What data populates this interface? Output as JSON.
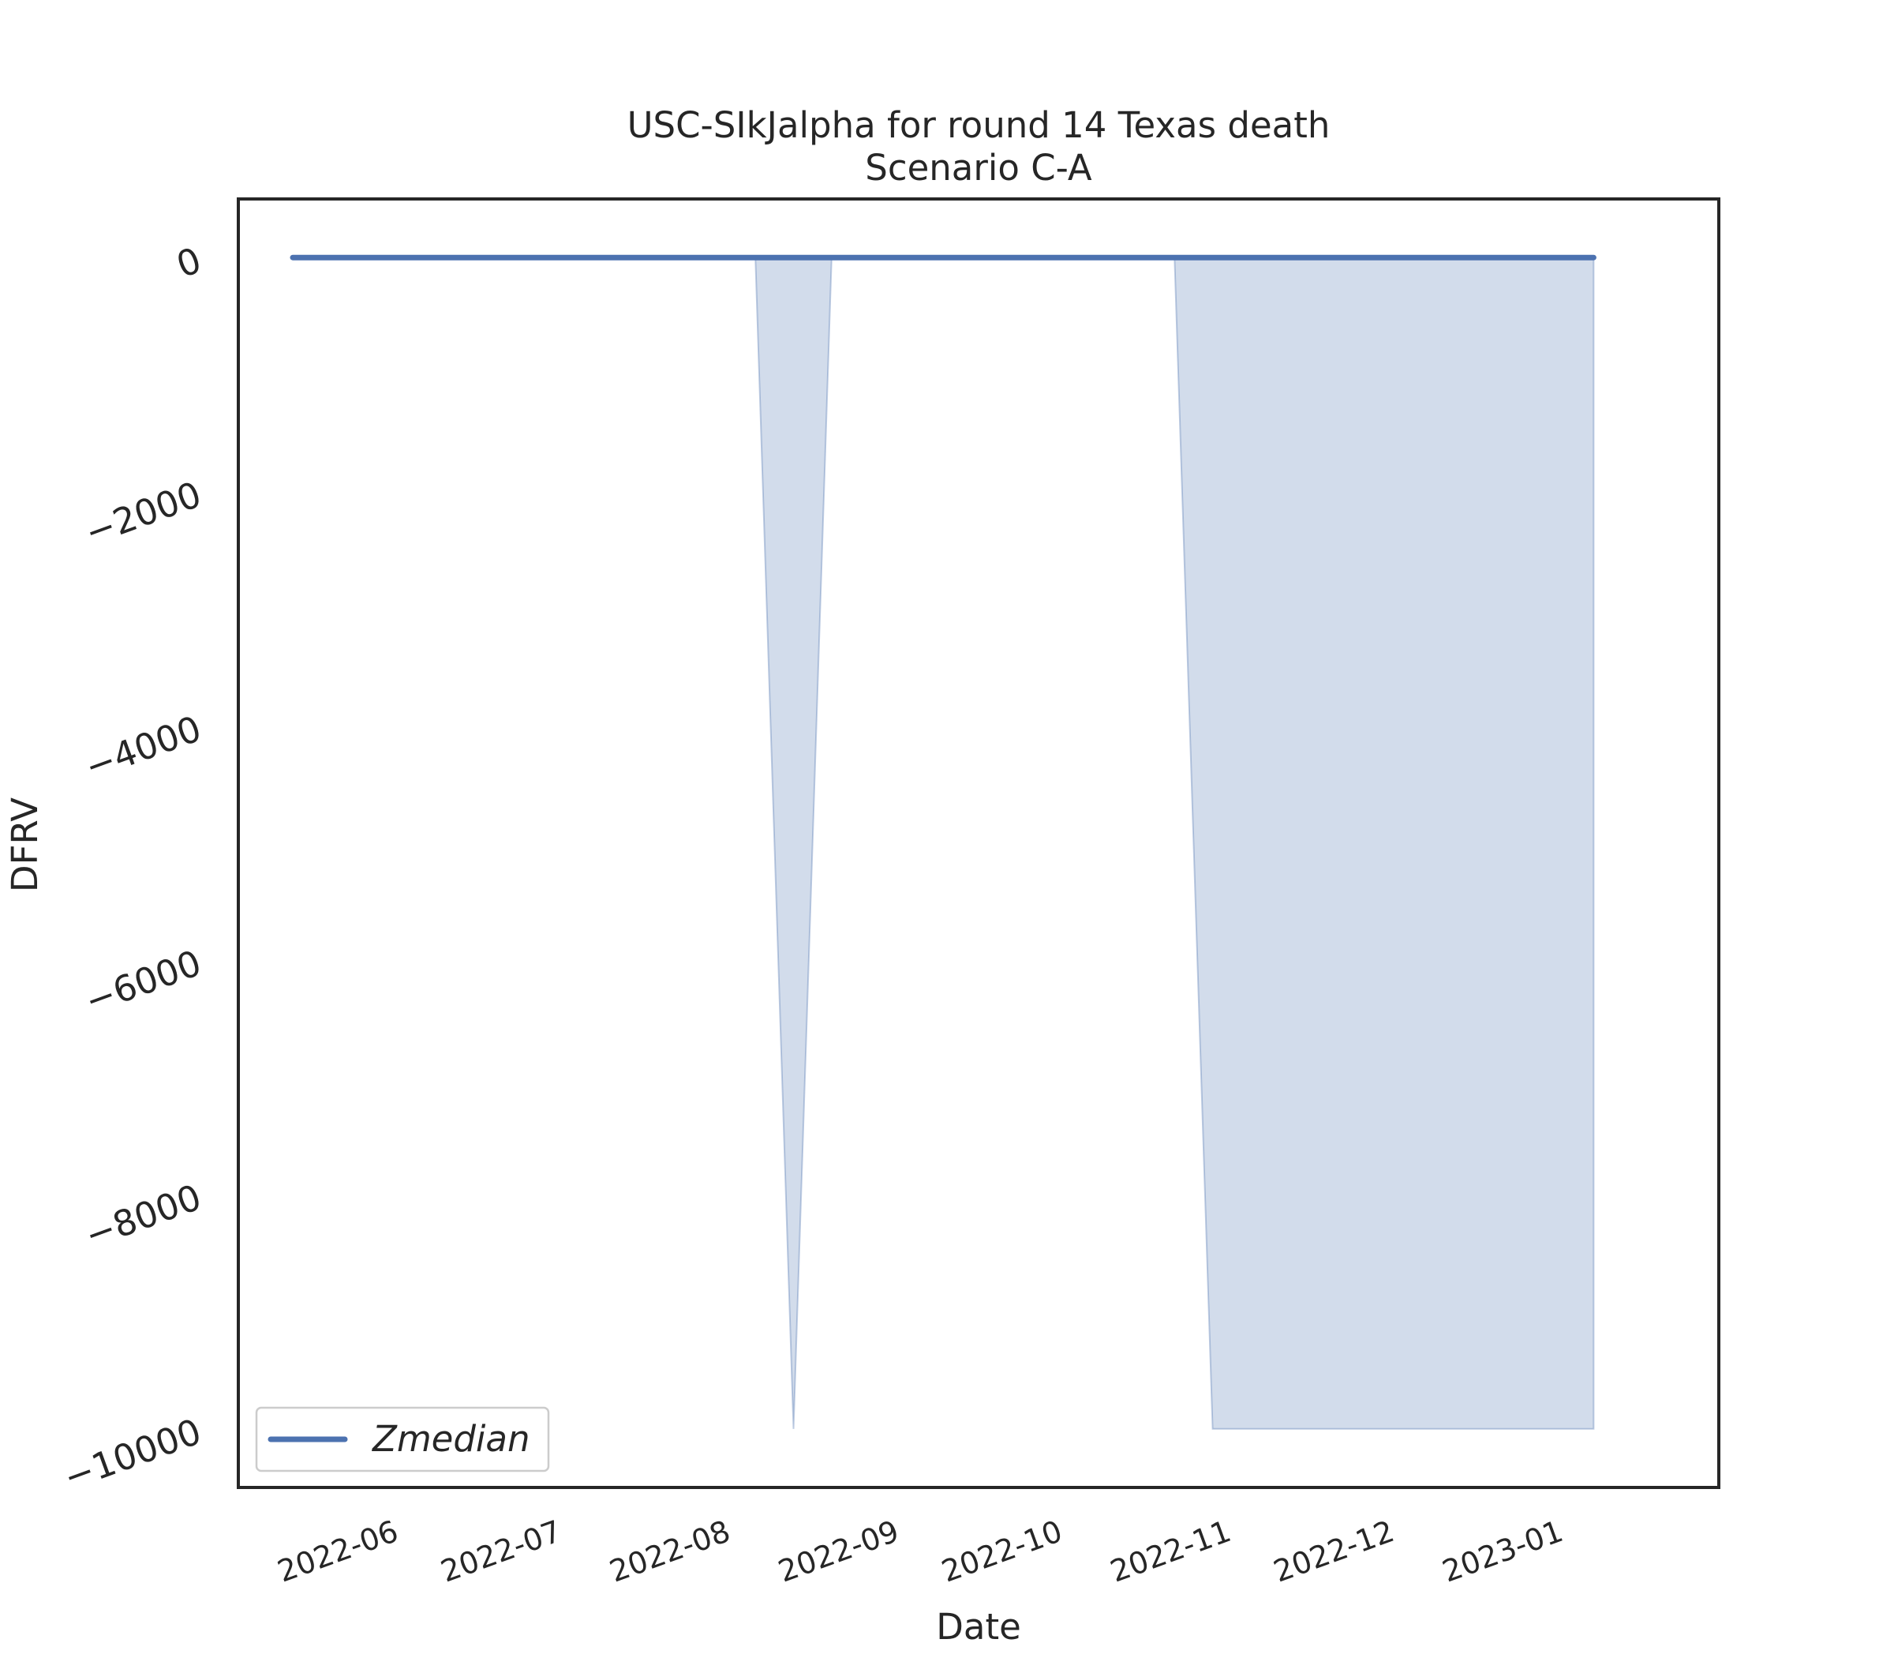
{
  "chart_data": {
    "type": "line",
    "title": "USC-SIkJalpha for round 14 Texas death",
    "subtitle": "Scenario C-A",
    "xlabel": "Date",
    "ylabel": "DFRV",
    "x_axis_type": "date",
    "xlim": [
      "2022-05-04",
      "2023-01-31"
    ],
    "ylim": [
      -10500,
      500
    ],
    "grid": false,
    "legend_position": "lower left",
    "x_ticks": [
      "2022-06",
      "2022-07",
      "2022-08",
      "2022-09",
      "2022-10",
      "2022-11",
      "2022-12",
      "2023-01"
    ],
    "y_ticks": [
      0,
      -2000,
      -4000,
      -6000,
      -8000,
      -10000
    ],
    "y_tick_labels": [
      "0",
      "−2000",
      "−4000",
      "−6000",
      "−8000",
      "−10000"
    ],
    "series": [
      {
        "name": "Zmedian",
        "color": "#4c72b0",
        "x": [
          "2022-05-14",
          "2023-01-08"
        ],
        "y": [
          0,
          0
        ]
      }
    ],
    "band": {
      "color": "#4c72b0",
      "opacity": 0.25,
      "x": [
        "2022-05-14",
        "2022-08-07",
        "2022-08-14",
        "2022-08-21",
        "2022-10-23",
        "2022-10-30",
        "2023-01-08"
      ],
      "lower": [
        0,
        0,
        -10000,
        0,
        0,
        -10000,
        -10000
      ],
      "upper": [
        0,
        0,
        0,
        0,
        0,
        0,
        0
      ]
    }
  }
}
